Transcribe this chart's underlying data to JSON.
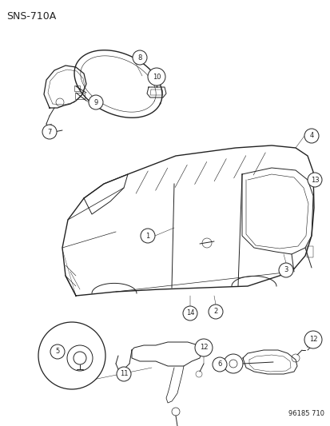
{
  "title": "SNS-710A",
  "footer": "96185 710",
  "bg_color": "#ffffff",
  "line_color": "#222222",
  "text_color": "#222222",
  "figsize": [
    4.14,
    5.33
  ],
  "dpi": 100
}
